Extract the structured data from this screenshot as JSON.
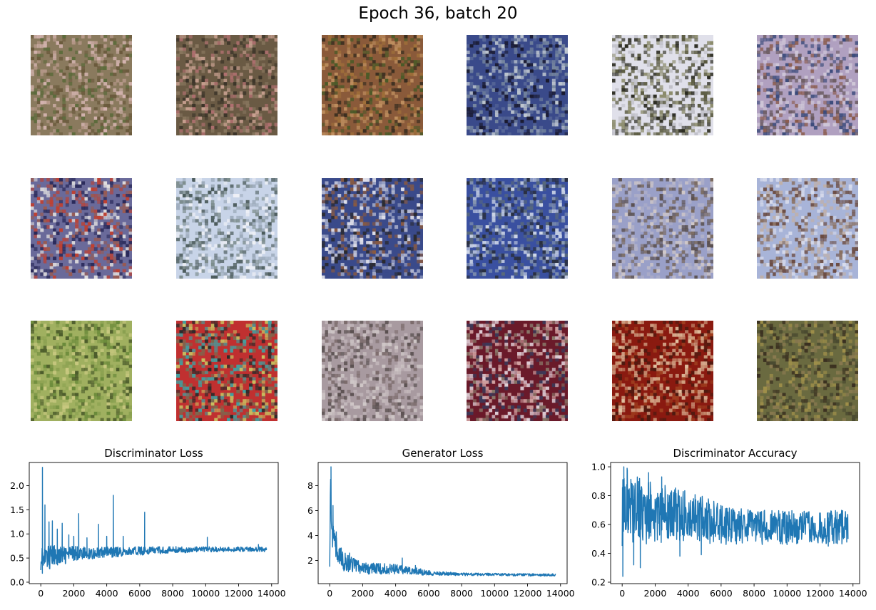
{
  "figure": {
    "title": "Epoch 36, batch 20"
  },
  "samples": [
    {
      "label": "",
      "colors": [
        "#8a7a5e",
        "#b89a8c",
        "#5a6a3a",
        "#d4b4b0",
        "#6a5a3c"
      ]
    },
    {
      "label": "",
      "colors": [
        "#6a5a44",
        "#b07070",
        "#3a3328",
        "#c8a090",
        "#8a7860"
      ]
    },
    {
      "label": "",
      "colors": [
        "#8a5a3a",
        "#a0703a",
        "#4a5a28",
        "#c09060",
        "#3a2e20"
      ]
    },
    {
      "label": "",
      "colors": [
        "#3a4a8a",
        "#1a1a30",
        "#7a8aa0",
        "#c0c8d0",
        "#5a6a9a"
      ]
    },
    {
      "label": "",
      "colors": [
        "#e0e0ea",
        "#2a2a20",
        "#8a8a6a",
        "#c0c0c8",
        "#5a5a40"
      ]
    },
    {
      "label": "",
      "colors": [
        "#b0a0c0",
        "#3a4a7a",
        "#8a5a4a",
        "#d0c8d8",
        "#6a5a60"
      ]
    },
    {
      "label": "",
      "colors": [
        "#6a6a9a",
        "#e0dede",
        "#2a2a5a",
        "#9a5a50",
        "#c04030"
      ]
    },
    {
      "label": "",
      "colors": [
        "#c8d4e8",
        "#9aa8b8",
        "#4a5a5a",
        "#eef0f6",
        "#7a8a8a"
      ]
    },
    {
      "label": "",
      "colors": [
        "#3a4a8a",
        "#8a5a40",
        "#e0e0ea",
        "#2a2a30",
        "#a0a8c8"
      ]
    },
    {
      "label": "",
      "colors": [
        "#3a50a0",
        "#d0d8e8",
        "#5a6a7a",
        "#8a9ab0",
        "#2a3040"
      ]
    },
    {
      "label": "",
      "colors": [
        "#9aa0c8",
        "#7a6a60",
        "#b0b0c8",
        "#d0c8c8",
        "#5a5050"
      ]
    },
    {
      "label": "",
      "colors": [
        "#a8b4d8",
        "#6a4a40",
        "#d8dcec",
        "#8a7060",
        "#c0b0a8"
      ]
    },
    {
      "label": "",
      "colors": [
        "#a0b060",
        "#6a8a3a",
        "#c8c880",
        "#4a5a2a",
        "#8aa050"
      ]
    },
    {
      "label": "",
      "colors": [
        "#c03030",
        "#2a2a2a",
        "#40a0a0",
        "#c8c060",
        "#7a6a50"
      ]
    },
    {
      "label": "",
      "colors": [
        "#a89aa0",
        "#d0c8c8",
        "#7a6a6a",
        "#c0b4b8",
        "#5a5050"
      ]
    },
    {
      "label": "",
      "colors": [
        "#6a1a2a",
        "#d0a0a0",
        "#3a3a5a",
        "#e0d0d8",
        "#8a7a6a"
      ]
    },
    {
      "label": "",
      "colors": [
        "#8a1a10",
        "#d0a080",
        "#4a1a10",
        "#e0c0a0",
        "#a04020"
      ]
    },
    {
      "label": "",
      "colors": [
        "#6a6a40",
        "#8a7a50",
        "#4a4a30",
        "#a0904a",
        "#3a3020"
      ]
    }
  ],
  "chart_data": [
    {
      "type": "line",
      "title": "Discriminator Loss",
      "xlabel": "",
      "ylabel": "",
      "xlim": [
        -700,
        14400
      ],
      "ylim": [
        -0.03,
        2.48
      ],
      "xticks": [
        0,
        2000,
        4000,
        6000,
        8000,
        10000,
        12000,
        14000
      ],
      "yticks": [
        0.0,
        0.5,
        1.0,
        1.5,
        2.0
      ],
      "ytick_labels": [
        "0.0",
        "0.5",
        "1.0",
        "1.5",
        "2.0"
      ],
      "color": "#1f77b4",
      "x": [
        0,
        100,
        200,
        300,
        500,
        700,
        1000,
        1500,
        2000,
        2500,
        3000,
        4000,
        5000,
        6000,
        7000,
        8000,
        9000,
        10000,
        11000,
        12000,
        13000,
        13700
      ],
      "y": [
        0.6,
        0.45,
        0.4,
        0.5,
        0.5,
        0.55,
        0.55,
        0.55,
        0.6,
        0.6,
        0.6,
        0.62,
        0.63,
        0.65,
        0.66,
        0.67,
        0.67,
        0.68,
        0.68,
        0.68,
        0.68,
        0.68
      ],
      "band": [
        0.35,
        0.35,
        0.3,
        0.28,
        0.25,
        0.22,
        0.2,
        0.18,
        0.15,
        0.14,
        0.13,
        0.12,
        0.1,
        0.09,
        0.08,
        0.07,
        0.06,
        0.06,
        0.05,
        0.05,
        0.05,
        0.05
      ],
      "spikes": [
        {
          "x": 100,
          "y": 2.38
        },
        {
          "x": 250,
          "y": 1.6
        },
        {
          "x": 500,
          "y": 1.25
        },
        {
          "x": 700,
          "y": 1.27
        },
        {
          "x": 1000,
          "y": 1.1
        },
        {
          "x": 1300,
          "y": 1.22
        },
        {
          "x": 1700,
          "y": 0.98
        },
        {
          "x": 2000,
          "y": 0.95
        },
        {
          "x": 2300,
          "y": 1.42
        },
        {
          "x": 2800,
          "y": 0.92
        },
        {
          "x": 3500,
          "y": 1.2
        },
        {
          "x": 4000,
          "y": 0.95
        },
        {
          "x": 4400,
          "y": 1.8
        },
        {
          "x": 5000,
          "y": 0.95
        },
        {
          "x": 6300,
          "y": 1.45
        },
        {
          "x": 10100,
          "y": 0.93
        },
        {
          "x": 13200,
          "y": 0.78
        }
      ]
    },
    {
      "type": "line",
      "title": "Generator Loss",
      "xlabel": "",
      "ylabel": "",
      "xlim": [
        -700,
        14400
      ],
      "ylim": [
        0.15,
        9.85
      ],
      "xticks": [
        0,
        2000,
        4000,
        6000,
        8000,
        10000,
        12000,
        14000
      ],
      "yticks": [
        2,
        4,
        6,
        8
      ],
      "ytick_labels": [
        "2",
        "4",
        "6",
        "8"
      ],
      "color": "#1f77b4",
      "x": [
        0,
        50,
        100,
        150,
        200,
        300,
        400,
        600,
        800,
        1000,
        1500,
        2000,
        3000,
        4000,
        5000,
        6000,
        7000,
        8000,
        10000,
        12000,
        13700
      ],
      "y": [
        3.0,
        8.0,
        5.5,
        4.5,
        4.0,
        3.2,
        2.8,
        2.2,
        2.0,
        1.8,
        1.6,
        1.4,
        1.35,
        1.3,
        1.2,
        1.0,
        0.95,
        0.9,
        0.88,
        0.85,
        0.85
      ],
      "band": [
        1.5,
        1.5,
        1.5,
        1.4,
        1.3,
        1.2,
        1.1,
        0.9,
        0.8,
        0.7,
        0.6,
        0.5,
        0.45,
        0.4,
        0.3,
        0.2,
        0.15,
        0.12,
        0.1,
        0.1,
        0.1
      ],
      "spikes": [
        {
          "x": 80,
          "y": 9.5
        },
        {
          "x": 200,
          "y": 6.4
        },
        {
          "x": 400,
          "y": 4.3
        },
        {
          "x": 700,
          "y": 3.0
        },
        {
          "x": 1200,
          "y": 2.6
        },
        {
          "x": 2200,
          "y": 1.8
        },
        {
          "x": 4400,
          "y": 2.2
        },
        {
          "x": 5200,
          "y": 1.6
        }
      ]
    },
    {
      "type": "line",
      "title": "Discriminator Accuracy",
      "xlabel": "",
      "ylabel": "",
      "xlim": [
        -700,
        14400
      ],
      "ylim": [
        0.19,
        1.03
      ],
      "xticks": [
        0,
        2000,
        4000,
        6000,
        8000,
        10000,
        12000,
        14000
      ],
      "yticks": [
        0.2,
        0.4,
        0.6,
        0.8,
        1.0
      ],
      "ytick_labels": [
        "0.2",
        "0.4",
        "0.6",
        "0.8",
        "1.0"
      ],
      "color": "#1f77b4",
      "x": [
        0,
        200,
        500,
        1000,
        1500,
        2000,
        3000,
        4000,
        5000,
        6000,
        7000,
        8000,
        9000,
        10000,
        11000,
        12000,
        13000,
        13700
      ],
      "y": [
        0.7,
        0.75,
        0.72,
        0.7,
        0.68,
        0.68,
        0.67,
        0.66,
        0.63,
        0.6,
        0.59,
        0.58,
        0.58,
        0.58,
        0.58,
        0.58,
        0.58,
        0.58
      ],
      "band": [
        0.25,
        0.25,
        0.24,
        0.23,
        0.22,
        0.21,
        0.19,
        0.18,
        0.16,
        0.14,
        0.13,
        0.12,
        0.12,
        0.12,
        0.12,
        0.12,
        0.12,
        0.12
      ],
      "spikes": [
        {
          "x": 40,
          "y": 0.24
        },
        {
          "x": 100,
          "y": 1.0
        },
        {
          "x": 300,
          "y": 0.99
        },
        {
          "x": 700,
          "y": 0.32
        },
        {
          "x": 1100,
          "y": 0.3
        },
        {
          "x": 1600,
          "y": 0.96
        },
        {
          "x": 2400,
          "y": 0.93
        },
        {
          "x": 3500,
          "y": 0.38
        },
        {
          "x": 4800,
          "y": 0.39
        },
        {
          "x": 12500,
          "y": 0.45
        }
      ]
    }
  ]
}
